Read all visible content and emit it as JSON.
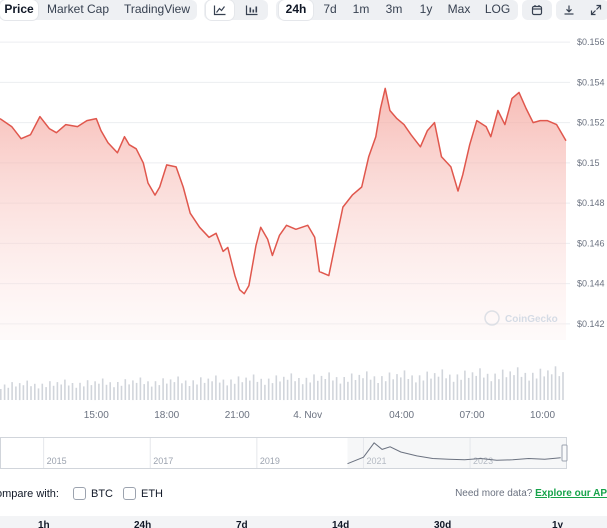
{
  "toolbar": {
    "tabs": [
      {
        "label": "Price",
        "active": true
      },
      {
        "label": "Market Cap",
        "active": false
      },
      {
        "label": "TradingView",
        "active": false
      }
    ],
    "chart_type_icons": [
      "line-chart-icon",
      "candlestick-icon"
    ],
    "ranges": [
      {
        "label": "24h",
        "active": true
      },
      {
        "label": "7d",
        "active": false
      },
      {
        "label": "1m",
        "active": false
      },
      {
        "label": "3m",
        "active": false
      },
      {
        "label": "1y",
        "active": false
      },
      {
        "label": "Max",
        "active": false
      },
      {
        "label": "LOG",
        "active": false
      }
    ],
    "right_icons": [
      "calendar-icon",
      "download-icon",
      "expand-icon"
    ]
  },
  "watermark": "CoinGecko",
  "colors": {
    "line": "#e0574d",
    "fill": "#f7c4bf",
    "volume": "#d1d5db",
    "navigator": "#6b7280"
  },
  "chart_data": {
    "type": "line",
    "title": "",
    "xlabel": "",
    "ylabel": "",
    "x_tick_labels": [
      "15:00",
      "18:00",
      "21:00",
      "4. Nov",
      "04:00",
      "07:00",
      "10:00"
    ],
    "x_tick_hours": [
      15,
      18,
      21,
      24,
      28,
      31,
      34
    ],
    "y_tick_labels": [
      "$0.142",
      "$0.144",
      "$0.146",
      "$0.148",
      "$0.15",
      "$0.152",
      "$0.154",
      "$0.156"
    ],
    "y_ticks": [
      0.142,
      0.144,
      0.146,
      0.148,
      0.15,
      0.152,
      0.154,
      0.156
    ],
    "xlim": [
      10.9,
      35
    ],
    "ylim": [
      0.1412,
      0.1566
    ],
    "grid": true,
    "series": [
      {
        "x": [
          10.9,
          11.4,
          11.8,
          12.2,
          12.6,
          13.0,
          13.3,
          13.7,
          14.2,
          14.6,
          15.0,
          15.2,
          15.5,
          15.9,
          16.2,
          16.4,
          16.7,
          17.0,
          17.2,
          17.5,
          17.7,
          18.0,
          18.4,
          18.7,
          19.0,
          19.4,
          19.8,
          20.1,
          20.4,
          20.6,
          20.9,
          21.1,
          21.3,
          21.5,
          21.8,
          22.0,
          22.3,
          22.5,
          22.8,
          23.1,
          23.5,
          24.0,
          24.3,
          24.5,
          24.9,
          25.2,
          25.5,
          25.9,
          26.3,
          26.6,
          26.9,
          27.1,
          27.3,
          27.5,
          27.8,
          28.1,
          28.4,
          28.8,
          29.1,
          29.4,
          29.7,
          30.1,
          30.4,
          30.6,
          30.9,
          31.2,
          31.6,
          31.8,
          32.1,
          32.4,
          32.7,
          33.0,
          33.3,
          33.6,
          33.9,
          34.2,
          34.6,
          35.0
        ],
        "y": [
          0.1522,
          0.1518,
          0.1512,
          0.1514,
          0.1523,
          0.1517,
          0.1515,
          0.1519,
          0.1518,
          0.1521,
          0.1522,
          0.1516,
          0.151,
          0.1505,
          0.1513,
          0.1509,
          0.1507,
          0.15,
          0.149,
          0.1484,
          0.1488,
          0.1499,
          0.1498,
          0.1488,
          0.1475,
          0.1468,
          0.1463,
          0.1465,
          0.1456,
          0.1458,
          0.1444,
          0.1437,
          0.1435,
          0.1439,
          0.1459,
          0.1468,
          0.1462,
          0.1454,
          0.1464,
          0.1469,
          0.1467,
          0.1469,
          0.1463,
          0.1446,
          0.1444,
          0.1461,
          0.1478,
          0.1484,
          0.1488,
          0.1503,
          0.1513,
          0.1527,
          0.1537,
          0.1526,
          0.1522,
          0.1519,
          0.1514,
          0.1508,
          0.1516,
          0.152,
          0.1503,
          0.1498,
          0.1486,
          0.1494,
          0.1509,
          0.1521,
          0.1518,
          0.1513,
          0.1526,
          0.1519,
          0.1532,
          0.1535,
          0.1527,
          0.152,
          0.1521,
          0.1521,
          0.1519,
          0.1511
        ]
      }
    ],
    "volume_range": [
      0,
      1
    ],
    "volume": {
      "x_start": 10.9,
      "x_end": 35,
      "count": 150,
      "levels": [
        0.5,
        0.7,
        0.55,
        0.8,
        0.6,
        0.75,
        0.65,
        0.85,
        0.6,
        0.7
      ]
    }
  },
  "navigator": {
    "year_labels": [
      "2015",
      "2017",
      "2019",
      "2021",
      "2023"
    ],
    "year_positions": [
      2015,
      2017,
      2019,
      2021,
      2023
    ],
    "range": [
      2014.2,
      2024.8
    ],
    "series_start": 2020.7,
    "series": [
      [
        2020.7,
        0.05
      ],
      [
        2021.0,
        0.3
      ],
      [
        2021.2,
        0.85
      ],
      [
        2021.35,
        0.6
      ],
      [
        2021.5,
        0.7
      ],
      [
        2021.7,
        0.5
      ],
      [
        2022.0,
        0.35
      ],
      [
        2022.3,
        0.25
      ],
      [
        2022.6,
        0.22
      ],
      [
        2022.9,
        0.2
      ],
      [
        2023.2,
        0.25
      ],
      [
        2023.5,
        0.18
      ],
      [
        2023.8,
        0.2
      ],
      [
        2024.1,
        0.25
      ],
      [
        2024.4,
        0.22
      ],
      [
        2024.7,
        0.28
      ]
    ]
  },
  "compare": {
    "label": "ompare with:",
    "options": [
      {
        "label": "BTC"
      },
      {
        "label": "ETH"
      }
    ],
    "need_text": "Need more data?",
    "api_link": "Explore our AP"
  },
  "bottom_row": [
    "1h",
    "24h",
    "7d",
    "14d",
    "30d",
    "1y"
  ]
}
